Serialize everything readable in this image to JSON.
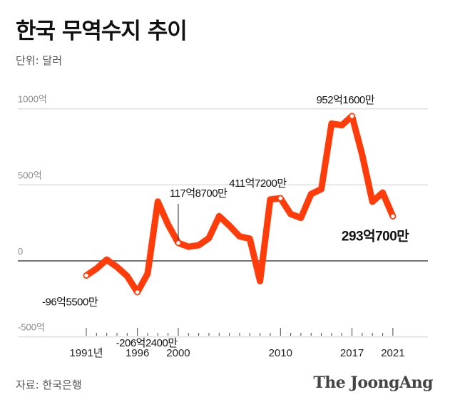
{
  "title": "한국 무역수지 추이",
  "unit": "단위: 달러",
  "source": "자료: 한국은행",
  "brand": "The JoongAng",
  "colors": {
    "line": "#ff3c0a",
    "grid": "#dddddd",
    "axis": "#222222"
  },
  "chart_data": {
    "type": "line",
    "title": "한국 무역수지 추이",
    "ylabel": "단위: 달러",
    "ylim": [
      -500,
      1000
    ],
    "yticks": [
      {
        "v": 1000,
        "label": "1000억"
      },
      {
        "v": 500,
        "label": "500억"
      },
      {
        "v": 0,
        "label": "0"
      },
      {
        "v": -500,
        "label": "-500억"
      }
    ],
    "xticks": [
      {
        "v": 1991,
        "label": "1991년"
      },
      {
        "v": 1996,
        "label": "1996"
      },
      {
        "v": 2000,
        "label": "2000"
      },
      {
        "v": 2010,
        "label": "2010"
      },
      {
        "v": 2017,
        "label": "2017"
      },
      {
        "v": 2021,
        "label": "2021"
      }
    ],
    "x": [
      1991,
      1992,
      1993,
      1994,
      1995,
      1996,
      1997,
      1998,
      1999,
      2000,
      2001,
      2002,
      2003,
      2004,
      2005,
      2006,
      2007,
      2008,
      2009,
      2010,
      2011,
      2012,
      2013,
      2014,
      2015,
      2016,
      2017,
      2018,
      2019,
      2020,
      2021
    ],
    "values": [
      -96.55,
      -51,
      8,
      -40,
      -100,
      -206.24,
      -84,
      390,
      239,
      117.87,
      93,
      103,
      150,
      294,
      232,
      161,
      146,
      -133,
      404,
      411.72,
      308,
      283,
      440,
      472,
      903,
      892,
      952.16,
      697,
      389,
      449,
      293.07
    ],
    "annotations": [
      {
        "year": 1991,
        "label": "-96억5500만"
      },
      {
        "year": 1996,
        "label": "-206억2400만"
      },
      {
        "year": 2000,
        "label": "117억8700만"
      },
      {
        "year": 2010,
        "label": "411억7200만"
      },
      {
        "year": 2017,
        "label": "952억1600만"
      },
      {
        "year": 2021,
        "label": "293억700만"
      }
    ]
  }
}
